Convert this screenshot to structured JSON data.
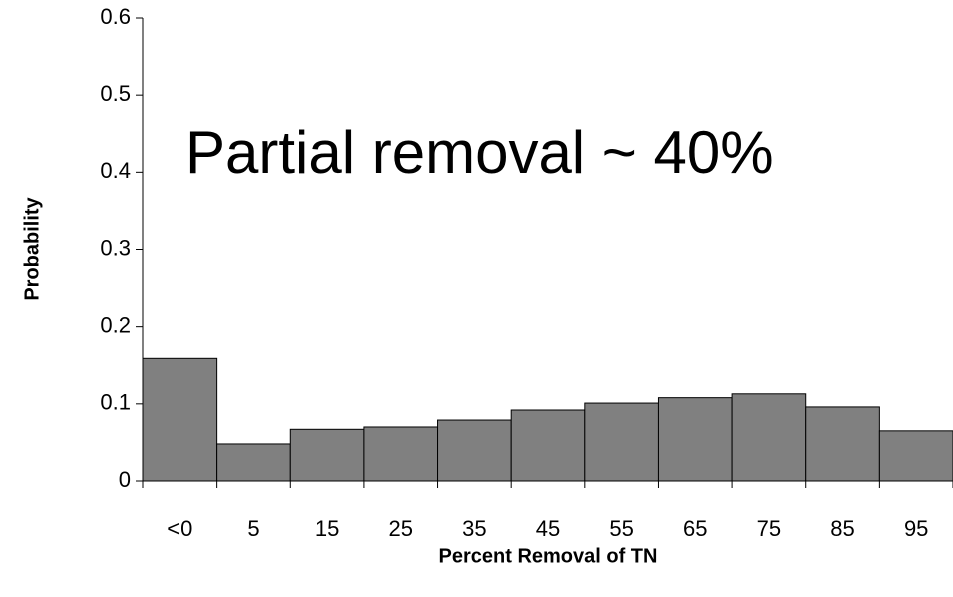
{
  "chart_data": {
    "type": "bar",
    "annotation": "Partial removal ~ 40%",
    "x_label": "Percent Removal of TN",
    "y_label": "Probability",
    "categories": [
      "<0",
      "5",
      "15",
      "25",
      "35",
      "45",
      "55",
      "65",
      "75",
      "85",
      "95"
    ],
    "values": [
      0.159,
      0.048,
      0.067,
      0.07,
      0.079,
      0.092,
      0.101,
      0.108,
      0.113,
      0.096,
      0.065
    ],
    "color": "#808080",
    "ylim": [
      0,
      0.6
    ],
    "yticks": [
      0,
      0.1,
      0.2,
      0.3,
      0.4,
      0.5,
      0.6
    ]
  }
}
